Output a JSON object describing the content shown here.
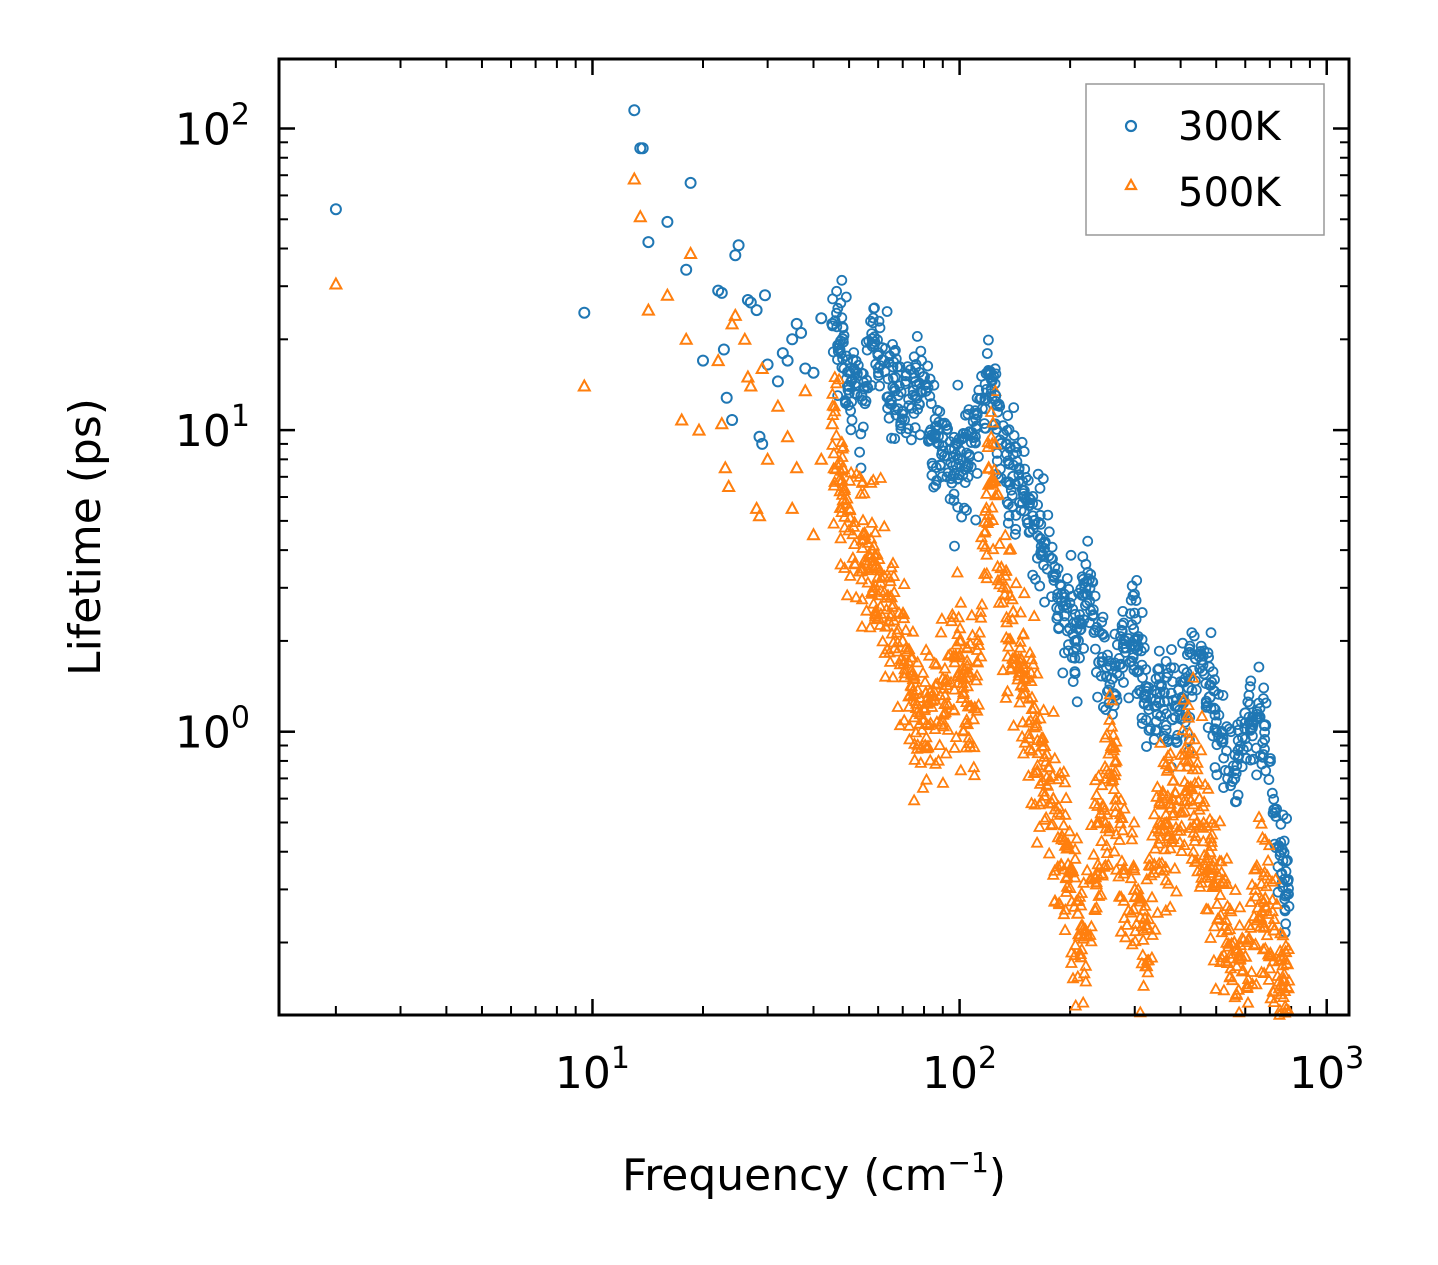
{
  "chart_data": {
    "type": "scatter",
    "title": "",
    "xlabel": "Frequency (cm",
    "xlabel_sup": "−1",
    "xlabel_close": ")",
    "ylabel": "Lifetime (ps)",
    "xscale": "log",
    "yscale": "log",
    "xlim": [
      1.4,
      1150
    ],
    "ylim": [
      0.115,
      170
    ],
    "xticks": [
      {
        "value": 10,
        "base": "10",
        "exp": "1"
      },
      {
        "value": 100,
        "base": "10",
        "exp": "2"
      },
      {
        "value": 1000,
        "base": "10",
        "exp": "3"
      }
    ],
    "yticks": [
      {
        "value": 1,
        "base": "10",
        "exp": "0"
      },
      {
        "value": 10,
        "base": "10",
        "exp": "1"
      },
      {
        "value": 100,
        "base": "10",
        "exp": "2"
      }
    ],
    "legend_position": "top-right",
    "series": [
      {
        "name": "300K",
        "marker": "circle",
        "color": "#1f77b4",
        "points": [
          [
            2.0,
            54
          ],
          [
            9.5,
            24.5
          ],
          [
            13.0,
            115
          ],
          [
            13.5,
            86
          ],
          [
            13.7,
            86
          ],
          [
            14.2,
            42
          ],
          [
            16.0,
            49
          ],
          [
            18.0,
            34
          ],
          [
            18.5,
            66
          ],
          [
            20.0,
            17
          ],
          [
            22.0,
            29
          ],
          [
            22.5,
            28.5
          ],
          [
            22.8,
            18.5
          ],
          [
            23.2,
            12.8
          ],
          [
            24.0,
            10.8
          ],
          [
            24.5,
            38
          ],
          [
            25.0,
            41
          ],
          [
            26.5,
            27
          ],
          [
            27.0,
            26.5
          ],
          [
            28.0,
            25
          ],
          [
            28.5,
            9.5
          ],
          [
            29.0,
            9.0
          ],
          [
            29.5,
            28
          ],
          [
            30.0,
            16.5
          ],
          [
            32.0,
            14.5
          ],
          [
            33.0,
            18
          ],
          [
            34.0,
            17
          ],
          [
            35.0,
            20
          ],
          [
            36.0,
            22.5
          ],
          [
            37.0,
            21
          ],
          [
            38.0,
            16
          ],
          [
            40.0,
            15.5
          ],
          [
            42.0,
            23.5
          ],
          [
            45.0,
            22.5
          ],
          [
            48.0,
            20
          ],
          [
            50.0,
            14
          ],
          [
            54.0,
            13
          ],
          [
            58.0,
            19
          ],
          [
            60.0,
            18
          ],
          [
            62.0,
            17
          ],
          [
            65.0,
            12.5
          ],
          [
            70.0,
            11.5
          ],
          [
            75.0,
            13.5
          ],
          [
            80.0,
            15
          ],
          [
            85.0,
            9.5
          ],
          [
            90.0,
            8.5
          ],
          [
            100.0,
            8.0
          ],
          [
            110.0,
            9.5
          ],
          [
            120.0,
            15.5
          ],
          [
            125.0,
            13
          ],
          [
            130.0,
            9.0
          ],
          [
            140.0,
            7.0
          ],
          [
            150.0,
            6.0
          ],
          [
            160.0,
            5.0
          ],
          [
            170.0,
            4.2
          ],
          [
            180.0,
            3.3
          ],
          [
            190.0,
            2.7
          ],
          [
            200.0,
            2.2
          ],
          [
            210.0,
            2.0
          ],
          [
            220.0,
            3.0
          ],
          [
            225.0,
            3.2
          ],
          [
            240.0,
            1.7
          ],
          [
            260.0,
            1.5
          ],
          [
            280.0,
            1.9
          ],
          [
            300.0,
            2.0
          ],
          [
            320.0,
            1.3
          ],
          [
            350.0,
            1.25
          ],
          [
            380.0,
            1.1
          ],
          [
            420.0,
            1.4
          ],
          [
            440.0,
            1.75
          ],
          [
            480.0,
            1.3
          ],
          [
            520.0,
            0.95
          ],
          [
            560.0,
            0.7
          ],
          [
            600.0,
            1.15
          ],
          [
            640.0,
            1.1
          ],
          [
            680.0,
            1.05
          ],
          [
            720.0,
            0.55
          ],
          [
            750.0,
            0.4
          ],
          [
            780.0,
            0.32
          ]
        ]
      },
      {
        "name": "500K",
        "marker": "triangle",
        "color": "#ff7f0e",
        "points": [
          [
            2.0,
            30.5
          ],
          [
            9.5,
            14
          ],
          [
            13.0,
            68
          ],
          [
            13.5,
            51
          ],
          [
            14.2,
            25
          ],
          [
            16.0,
            28
          ],
          [
            17.5,
            10.8
          ],
          [
            18.0,
            20
          ],
          [
            18.5,
            38.5
          ],
          [
            19.5,
            10
          ],
          [
            22.0,
            17
          ],
          [
            22.5,
            10.5
          ],
          [
            23.0,
            7.5
          ],
          [
            23.5,
            6.5
          ],
          [
            24.0,
            22.5
          ],
          [
            24.5,
            24
          ],
          [
            26.0,
            20
          ],
          [
            26.5,
            15
          ],
          [
            27.0,
            14
          ],
          [
            28.0,
            5.5
          ],
          [
            28.5,
            5.2
          ],
          [
            29.0,
            16
          ],
          [
            30.0,
            8
          ],
          [
            32.0,
            12
          ],
          [
            34.0,
            9.5
          ],
          [
            35.0,
            5.5
          ],
          [
            36.0,
            7.5
          ],
          [
            38.0,
            13.5
          ],
          [
            40.0,
            4.5
          ],
          [
            42.0,
            8
          ],
          [
            45.0,
            10.5
          ],
          [
            48.0,
            7.5
          ],
          [
            50.0,
            5.5
          ],
          [
            55.0,
            4.5
          ],
          [
            60.0,
            3.5
          ],
          [
            65.0,
            2.8
          ],
          [
            70.0,
            2.0
          ],
          [
            75.0,
            1.5
          ],
          [
            80.0,
            1.2
          ],
          [
            90.0,
            1.5
          ],
          [
            100.0,
            2.0
          ],
          [
            110.0,
            1.2
          ],
          [
            120.0,
            7.5
          ],
          [
            125.0,
            9.0
          ],
          [
            130.0,
            3.5
          ],
          [
            140.0,
            2.5
          ],
          [
            150.0,
            1.5
          ],
          [
            160.0,
            1.2
          ],
          [
            170.0,
            0.9
          ],
          [
            180.0,
            0.6
          ],
          [
            190.0,
            0.45
          ],
          [
            200.0,
            0.35
          ],
          [
            210.0,
            0.25
          ],
          [
            220.0,
            0.22
          ],
          [
            240.0,
            0.5
          ],
          [
            260.0,
            0.9
          ],
          [
            280.0,
            0.35
          ],
          [
            300.0,
            0.3
          ],
          [
            320.0,
            0.24
          ],
          [
            350.0,
            0.5
          ],
          [
            380.0,
            0.6
          ],
          [
            420.0,
            0.8
          ],
          [
            450.0,
            0.6
          ],
          [
            480.0,
            0.4
          ],
          [
            520.0,
            0.32
          ],
          [
            560.0,
            0.2
          ],
          [
            600.0,
            0.18
          ],
          [
            640.0,
            0.3
          ],
          [
            680.0,
            0.28
          ],
          [
            720.0,
            0.22
          ],
          [
            750.0,
            0.18
          ],
          [
            780.0,
            0.17
          ]
        ]
      }
    ]
  }
}
